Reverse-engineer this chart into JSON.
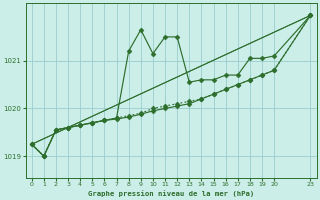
{
  "title": "Graphe pression niveau de la mer (hPa)",
  "bg_color": "#cceee8",
  "grid_color": "#99cccc",
  "line_color": "#2d6e2d",
  "xlim": [
    -0.5,
    23.5
  ],
  "ylim": [
    1018.55,
    1022.2
  ],
  "xticks": [
    0,
    1,
    2,
    3,
    4,
    5,
    6,
    7,
    8,
    9,
    10,
    11,
    12,
    13,
    14,
    15,
    16,
    17,
    18,
    19,
    20,
    23
  ],
  "yticks": [
    1019,
    1020,
    1021
  ],
  "series_dotted": {
    "x": [
      0,
      1,
      2,
      3,
      4,
      5,
      6,
      7,
      8,
      9,
      10,
      11,
      12,
      13,
      14,
      15,
      16,
      17,
      18,
      19,
      20,
      23
    ],
    "y": [
      1019.25,
      1019.0,
      1019.55,
      1019.6,
      1019.65,
      1019.7,
      1019.75,
      1019.8,
      1019.85,
      1019.9,
      1020.0,
      1020.05,
      1020.1,
      1020.15,
      1020.2,
      1020.3,
      1020.4,
      1020.5,
      1020.6,
      1020.7,
      1020.8,
      1021.95
    ]
  },
  "series_linear1": {
    "x": [
      0,
      23
    ],
    "y": [
      1019.25,
      1021.95
    ]
  },
  "series_linear2": {
    "x": [
      0,
      23
    ],
    "y": [
      1019.25,
      1021.95
    ]
  },
  "series_volatile": {
    "x": [
      0,
      1,
      2,
      3,
      4,
      5,
      6,
      7,
      8,
      9,
      10,
      11,
      12,
      13,
      14,
      15,
      16,
      17,
      18,
      19,
      20,
      23
    ],
    "y": [
      1019.25,
      1019.0,
      1019.55,
      1019.6,
      1019.65,
      1019.7,
      1019.75,
      1019.8,
      1021.2,
      1021.65,
      1021.15,
      1021.5,
      1021.5,
      1020.55,
      1020.6,
      1020.6,
      1020.7,
      1020.7,
      1021.05,
      1021.05,
      1021.1,
      1021.95
    ]
  },
  "series_smooth": {
    "x": [
      0,
      1,
      2,
      3,
      4,
      5,
      6,
      7,
      8,
      9,
      10,
      11,
      12,
      13,
      14,
      15,
      16,
      17,
      18,
      19,
      20,
      23
    ],
    "y": [
      1019.25,
      1019.0,
      1019.55,
      1019.6,
      1019.65,
      1019.7,
      1019.75,
      1019.78,
      1019.82,
      1019.88,
      1019.95,
      1020.0,
      1020.05,
      1020.1,
      1020.2,
      1020.3,
      1020.4,
      1020.5,
      1020.6,
      1020.7,
      1020.8,
      1021.95
    ]
  }
}
